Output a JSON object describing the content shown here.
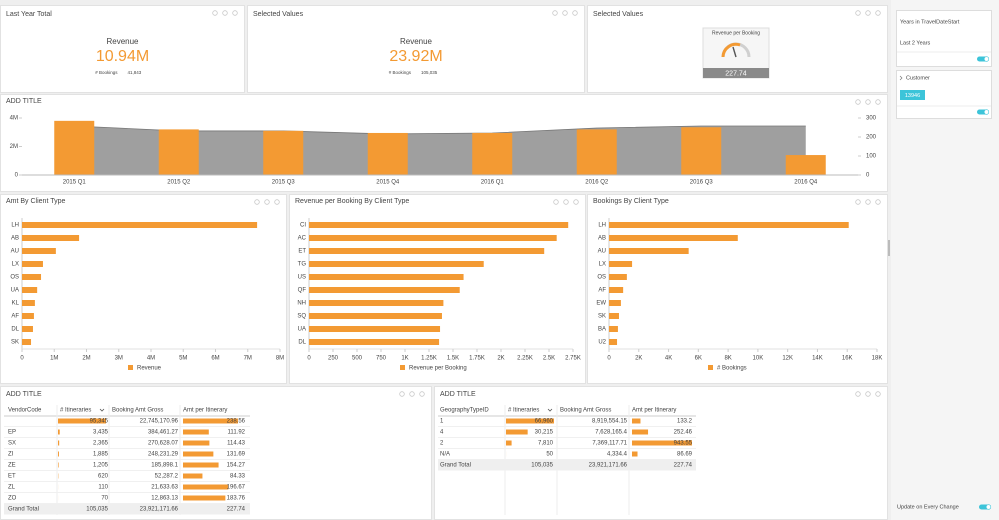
{
  "tiles": [
    {
      "title": "Last Year Total",
      "label": "Revenue",
      "value": "10.94M",
      "sub_label": "# Bookings",
      "sub_value": "41,843"
    },
    {
      "title": "Selected Values",
      "label": "Revenue",
      "value": "23.92M",
      "sub_label": "# Bookings",
      "sub_value": "105,035"
    }
  ],
  "gauge_tile": {
    "title": "Selected Values",
    "label": "Revenue per Booking",
    "value": "227.74"
  },
  "chart_data": [
    {
      "type": "combo",
      "title": "ADD TITLE",
      "categories": [
        "2015 Q1",
        "2015 Q2",
        "2015 Q3",
        "2015 Q4",
        "2016 Q1",
        "2016 Q2",
        "2016 Q3",
        "2016 Q4"
      ],
      "series": [
        {
          "type": "bar",
          "color": "#f39a33",
          "values": [
            3800000,
            3200000,
            3100000,
            2950000,
            2950000,
            3200000,
            3350000,
            1400000
          ]
        },
        {
          "type": "area",
          "color": "#9a9a9a",
          "axis": "y2",
          "values": [
            258,
            232,
            232,
            216,
            221,
            247,
            258,
            258
          ]
        }
      ],
      "ylim": [
        0,
        4000000
      ],
      "yticks": [
        0,
        {
          "value": 2000000,
          "label": "2M"
        },
        {
          "value": 4000000,
          "label": "4M"
        }
      ],
      "y2lim": [
        0,
        300
      ],
      "y2ticks": [
        0,
        100,
        200,
        300
      ]
    },
    {
      "type": "barh",
      "title": "Amt By Client Type",
      "categories": [
        "LH",
        "AB",
        "AU",
        "LX",
        "OS",
        "UA",
        "KL",
        "AF",
        "DL",
        "SK"
      ],
      "series": [
        {
          "name": "Revenue",
          "color": "#f39a33",
          "values": [
            7290000,
            1770000,
            1050000,
            650000,
            590000,
            470000,
            400000,
            370000,
            340000,
            280000
          ]
        }
      ],
      "xlim": [
        0,
        8000000
      ],
      "xticks": [
        0,
        {
          "value": 1000000,
          "label": "1M"
        },
        {
          "value": 2000000,
          "label": "2M"
        },
        {
          "value": 3000000,
          "label": "3M"
        },
        {
          "value": 4000000,
          "label": "4M"
        },
        {
          "value": 5000000,
          "label": "5M"
        },
        {
          "value": 6000000,
          "label": "6M"
        },
        {
          "value": 7000000,
          "label": "7M"
        },
        {
          "value": 8000000,
          "label": "8M"
        }
      ]
    },
    {
      "type": "barh",
      "title": "Revenue per Booking By Client Type",
      "categories": [
        "CI",
        "AC",
        "ET",
        "TG",
        "US",
        "QF",
        "NH",
        "SQ",
        "UA",
        "DL"
      ],
      "series": [
        {
          "name": "Revenue per Booking",
          "color": "#f39a33",
          "values": [
            2700,
            2580,
            2450,
            1820,
            1610,
            1570,
            1400,
            1385,
            1365,
            1355
          ]
        }
      ],
      "xlim": [
        0,
        2750
      ],
      "xticks": [
        0,
        250,
        500,
        750,
        {
          "value": 1000,
          "label": "1K"
        },
        {
          "value": 1250,
          "label": "1.25K"
        },
        {
          "value": 1500,
          "label": "1.5K"
        },
        {
          "value": 1750,
          "label": "1.75K"
        },
        {
          "value": 2000,
          "label": "2K"
        },
        {
          "value": 2250,
          "label": "2.25K"
        },
        {
          "value": 2500,
          "label": "2.5K"
        },
        {
          "value": 2750,
          "label": "2.75K"
        }
      ]
    },
    {
      "type": "barh",
      "title": "Bookings By Client Type",
      "categories": [
        "LH",
        "AB",
        "AU",
        "LX",
        "OS",
        "AF",
        "EW",
        "SK",
        "BA",
        "U2"
      ],
      "series": [
        {
          "name": "# Bookings",
          "color": "#f39a33",
          "values": [
            16100,
            8650,
            5350,
            1550,
            1200,
            950,
            800,
            670,
            600,
            540
          ]
        }
      ],
      "xlim": [
        0,
        18000
      ],
      "xticks": [
        0,
        {
          "value": 2000,
          "label": "2K"
        },
        {
          "value": 4000,
          "label": "4K"
        },
        {
          "value": 6000,
          "label": "6K"
        },
        {
          "value": 8000,
          "label": "8K"
        },
        {
          "value": 10000,
          "label": "10K"
        },
        {
          "value": 12000,
          "label": "12K"
        },
        {
          "value": 14000,
          "label": "14K"
        },
        {
          "value": 16000,
          "label": "16K"
        },
        {
          "value": 18000,
          "label": "18K"
        }
      ]
    }
  ],
  "tables": [
    {
      "title": "ADD TITLE",
      "columns": [
        "VendorCode",
        "# Itineraries",
        "Booking Amt Gross",
        "Amt per Itinerary"
      ],
      "rows": [
        [
          "",
          "95,345",
          "22,745,170.96",
          "238.56"
        ],
        [
          "EP",
          "3,435",
          "384,461.27",
          "111.92"
        ],
        [
          "SX",
          "2,365",
          "270,628.07",
          "114.43"
        ],
        [
          "ZI",
          "1,885",
          "248,231.29",
          "131.69"
        ],
        [
          "ZE",
          "1,205",
          "185,898.1",
          "154.27"
        ],
        [
          "ET",
          "620",
          "52,287.2",
          "84.33"
        ],
        [
          "ZL",
          "110",
          "21,633.63",
          "196.67"
        ],
        [
          "ZO",
          "70",
          "12,863.13",
          "183.76"
        ]
      ],
      "total": [
        "Grand Total",
        "105,035",
        "23,921,171.66",
        "227.74"
      ]
    },
    {
      "title": "ADD TITLE",
      "columns": [
        "GeographyTypeID",
        "# Itineraries",
        "Booking Amt Gross",
        "Amt per Itinerary"
      ],
      "rows": [
        [
          "1",
          "66,960",
          "8,919,554.15",
          "133.2"
        ],
        [
          "4",
          "30,215",
          "7,628,165.4",
          "252.46"
        ],
        [
          "2",
          "7,810",
          "7,369,117.71",
          "943.55"
        ],
        [
          "N/A",
          "50",
          "4,334.4",
          "86.69"
        ]
      ],
      "total": [
        "Grand Total",
        "105,035",
        "23,921,171.66",
        "227.74"
      ]
    }
  ],
  "filters": {
    "years": {
      "title": "Years in TravelDateStart",
      "value": "Last 2 Years"
    },
    "customer": {
      "title": "Customer",
      "value": "13946"
    },
    "update_label": "Update on Every Change"
  }
}
